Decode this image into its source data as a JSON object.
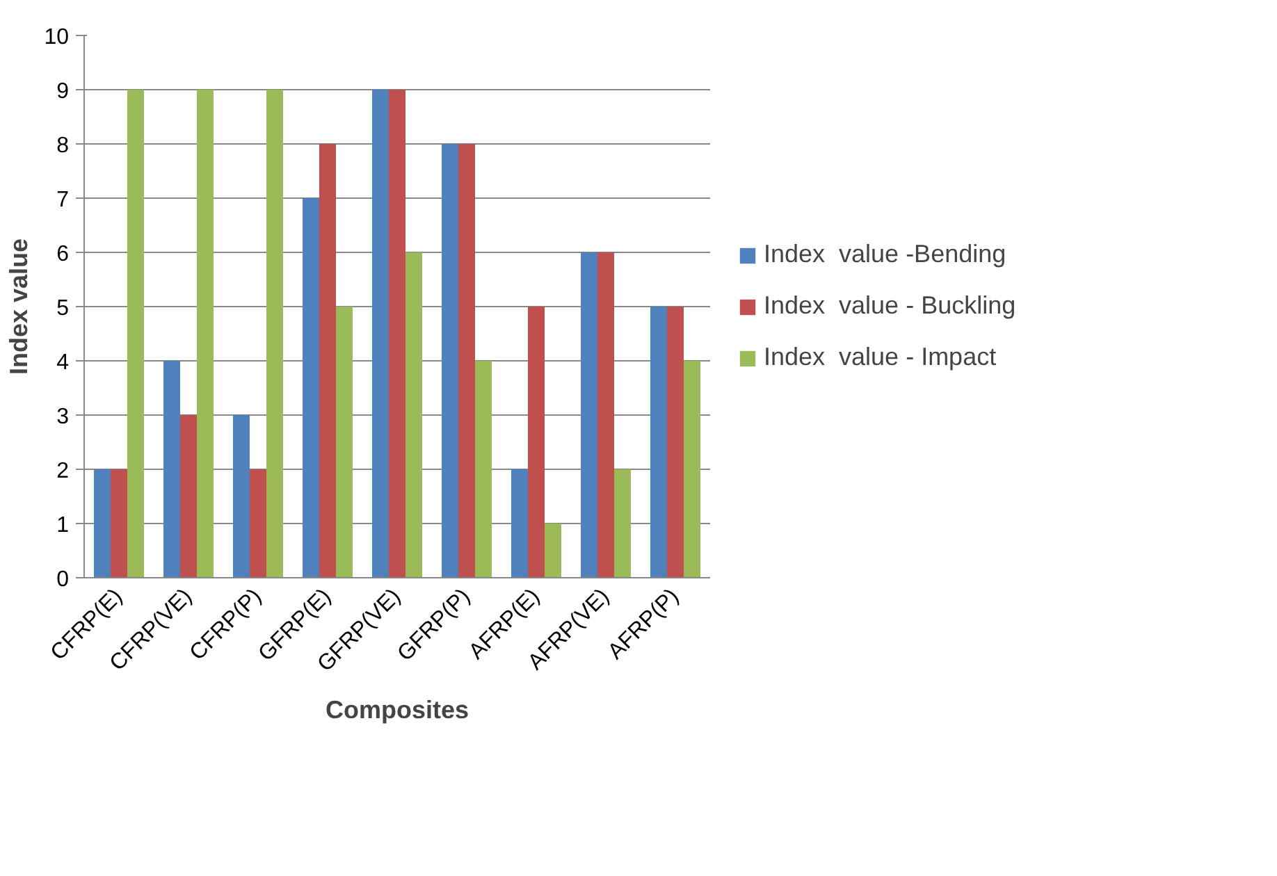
{
  "chart_data": {
    "type": "bar",
    "xlabel": "Composites",
    "ylabel": "Index value",
    "categories": [
      "CFRP(E)",
      "CFRP(VE)",
      "CFRP(P)",
      "GFRP(E)",
      "GFRP(VE)",
      "GFRP(P)",
      "AFRP(E)",
      "AFRP(VE)",
      "AFRP(P)"
    ],
    "series": [
      {
        "name": "Index  value -Bending",
        "color": "#4f81bd",
        "values": [
          2,
          4,
          3,
          7,
          9,
          8,
          2,
          6,
          5
        ]
      },
      {
        "name": "Index  value - Buckling",
        "color": "#c0504d",
        "values": [
          2,
          3,
          2,
          8,
          9,
          8,
          5,
          6,
          5
        ]
      },
      {
        "name": "Index  value - Impact",
        "color": "#9bbb59",
        "values": [
          9,
          9,
          9,
          5,
          6,
          4,
          1,
          2,
          4
        ]
      }
    ],
    "ylim": [
      0,
      10
    ],
    "yticks": [
      0,
      1,
      2,
      3,
      4,
      5,
      6,
      7,
      8,
      9,
      10
    ],
    "grid": "y",
    "legend": "right"
  }
}
